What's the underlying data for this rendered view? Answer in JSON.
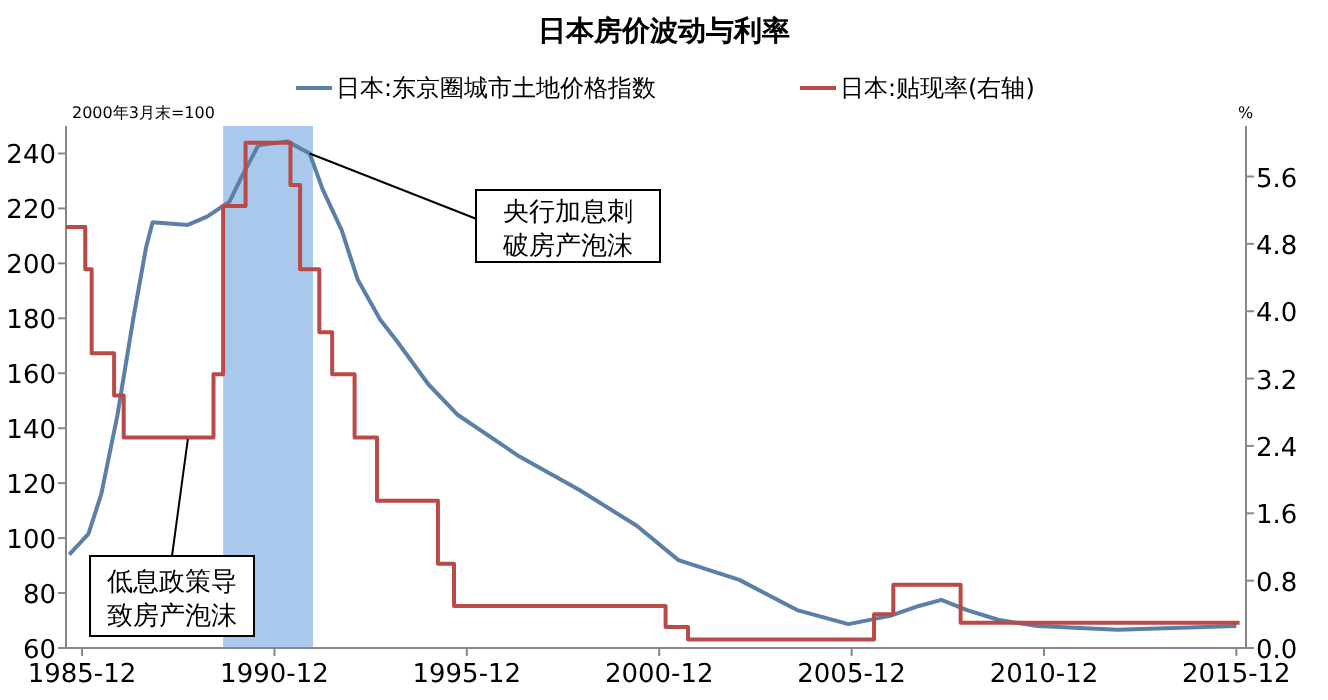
{
  "chart_data": {
    "type": "line",
    "title": "日本房价波动与利率",
    "legend": "top",
    "grid": false,
    "xlim": [
      "1985-07",
      "2016-03"
    ],
    "xticks": [
      "1985-12",
      "1990-12",
      "1995-12",
      "2000-12",
      "2005-12",
      "2010-12",
      "2015-12"
    ],
    "ylim": [
      60,
      250
    ],
    "yticks": [
      60,
      80,
      100,
      120,
      140,
      160,
      180,
      200,
      220,
      240
    ],
    "y2lim": [
      0,
      6.2
    ],
    "y2ticks": [
      {
        "value": 0,
        "label": "0.0"
      },
      {
        "value": 0.8,
        "label": "0.8"
      },
      {
        "value": 1.6,
        "label": "1.6"
      },
      {
        "value": 2.4,
        "label": "2.4"
      },
      {
        "value": 3.2,
        "label": "3.2"
      },
      {
        "value": 4,
        "label": "4.0"
      },
      {
        "value": 4.8,
        "label": "4.8"
      },
      {
        "value": 5.6,
        "label": "5.6"
      }
    ],
    "bands": [
      {
        "axis": "x",
        "from": "1989-08",
        "to": "1991-12",
        "color": "#a9c8ec"
      }
    ],
    "series": [
      {
        "name": "日本:东京圈城市土地价格指数",
        "type": "line",
        "color": "#5b7fa6",
        "x": [
          "1985-08",
          "1986-02",
          "1986-06",
          "1986-11",
          "1987-04",
          "1987-08",
          "1987-10",
          "1988-09",
          "1989-03",
          "1989-10",
          "1990-02",
          "1990-07",
          "1991-04",
          "1991-11",
          "1992-03",
          "1992-09",
          "1993-02",
          "1993-09",
          "1994-02",
          "1994-12",
          "1995-09",
          "1997-04",
          "1998-11",
          "2000-05",
          "2001-06",
          "2003-01",
          "2004-07",
          "2005-11",
          "2006-12",
          "2007-09",
          "2008-04",
          "2008-12",
          "2009-10",
          "2010-10",
          "2012-11",
          "2015-12"
        ],
        "values": [
          94,
          101.5,
          116,
          144.5,
          180,
          206,
          215,
          214,
          217,
          222.5,
          232,
          243,
          244.4,
          240,
          227,
          212,
          194,
          179.5,
          172,
          156,
          145,
          130,
          117.6,
          104.5,
          92,
          84.8,
          73.8,
          68.7,
          71.7,
          75.3,
          77.5,
          73.8,
          70.2,
          68,
          66.6,
          68
        ]
      },
      {
        "name": "日本:贴现率(右轴)",
        "type": "step",
        "axis": "y2",
        "color": "#b94a48",
        "x": [
          "1985-07",
          "1986-01",
          "1986-03",
          "1986-10",
          "1987-01",
          "1989-05",
          "1989-08",
          "1990-03",
          "1991-05",
          "1991-08",
          "1992-02",
          "1992-06",
          "1993-01",
          "1993-08",
          "1995-03",
          "1995-08",
          "2001-02",
          "2001-09",
          "2006-07",
          "2007-01",
          "2008-10",
          "2016-01"
        ],
        "values": [
          5,
          4.5,
          3.5,
          3,
          2.5,
          3.25,
          5.25,
          6,
          5.5,
          4.5,
          3.75,
          3.25,
          2.5,
          1.75,
          1,
          0.5,
          0.25,
          0.1,
          0.4,
          0.75,
          0.3,
          0.3
        ]
      }
    ],
    "annotations": [
      "2000年3月末=100",
      "%",
      {
        "text": "央行加息刺破房产泡沫",
        "x": "1991-11",
        "y": 240
      },
      {
        "text": "低息政策导致房产泡沫",
        "x": "1988-09",
        "y": 136
      }
    ]
  }
}
